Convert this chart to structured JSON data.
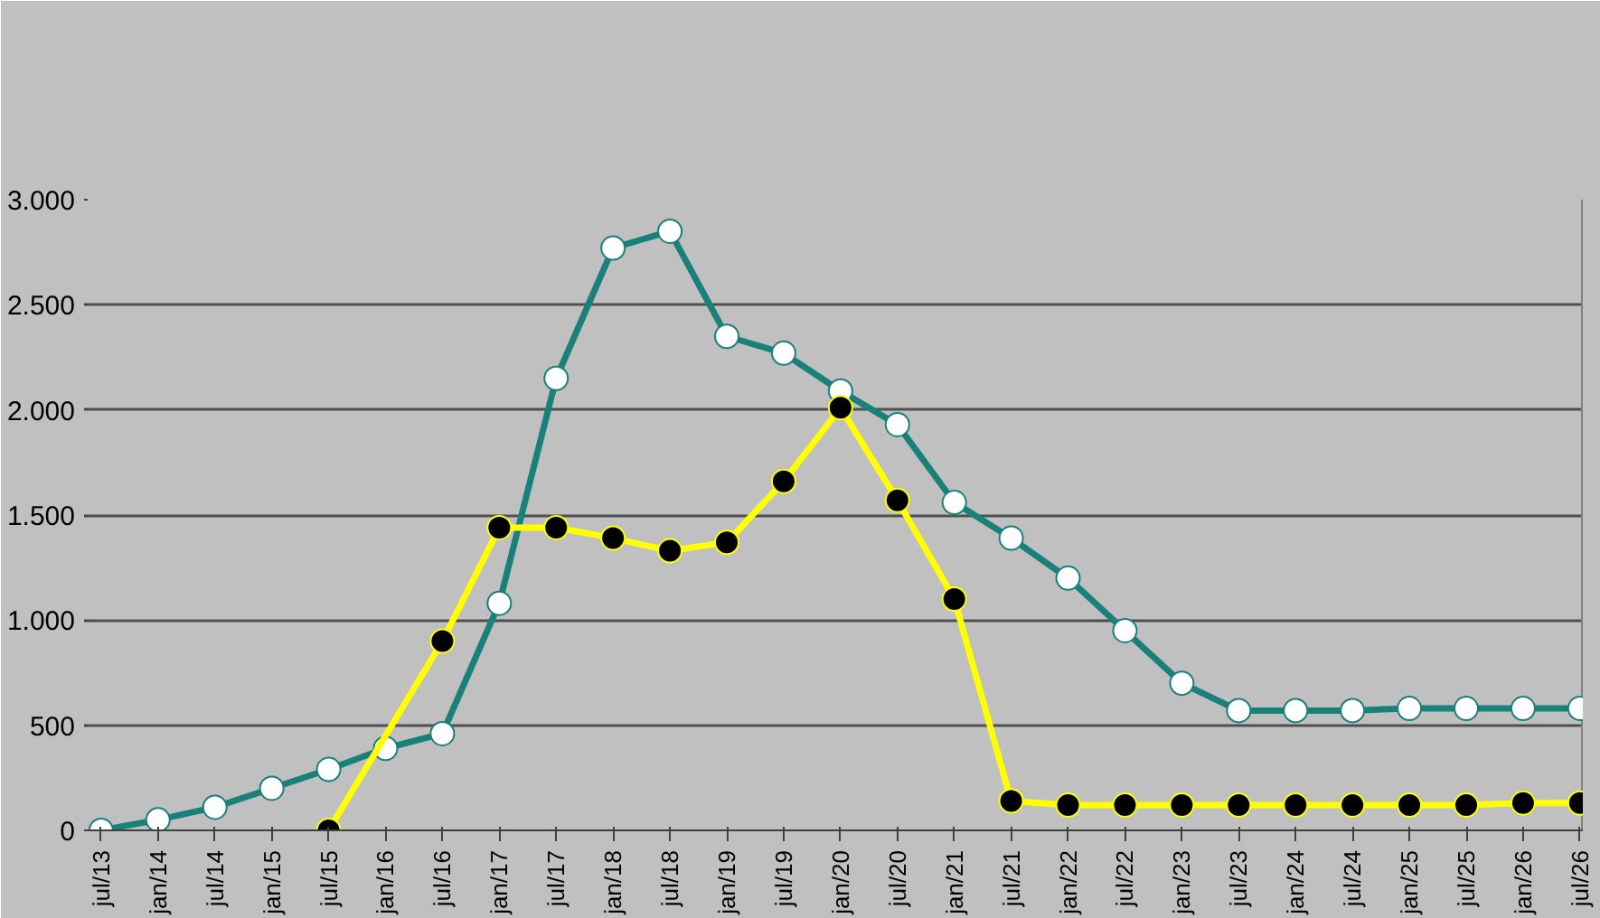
{
  "chart_data": {
    "type": "line",
    "categories": [
      "jul/13",
      "jan/14",
      "jul/14",
      "jan/15",
      "jul/15",
      "jan/16",
      "jul/16",
      "jan/17",
      "jul/17",
      "jan/18",
      "jul/18",
      "jan/19",
      "jul/19",
      "jan/20",
      "jul/20",
      "jan/21",
      "jul/21",
      "jan/22",
      "jul/22",
      "jan/23",
      "jul/23",
      "jan/24",
      "jul/24",
      "jan/25",
      "jul/25",
      "jan/26",
      "jul/26"
    ],
    "series": [
      {
        "color": "#1a807a",
        "values": [
          0,
          50,
          110,
          200,
          290,
          390,
          460,
          1080,
          2150,
          2770,
          2850,
          2350,
          2270,
          2090,
          1930,
          1560,
          1390,
          1200,
          950,
          700,
          570,
          570,
          570,
          580,
          580,
          580,
          580
        ]
      },
      {
        "color": "#ffff00",
        "values": [
          null,
          null,
          null,
          null,
          0,
          null,
          900,
          1440,
          1440,
          1390,
          1330,
          1370,
          1660,
          2010,
          1570,
          1100,
          140,
          120,
          120,
          120,
          120,
          120,
          120,
          120,
          120,
          130,
          130
        ]
      }
    ],
    "ylim": [
      0,
      3000
    ],
    "yticks": [
      {
        "value": 0,
        "label": "0"
      },
      {
        "value": 500,
        "label": "500"
      },
      {
        "value": 1000,
        "label": "1.000"
      },
      {
        "value": 1500,
        "label": "1.500"
      },
      {
        "value": 2000,
        "label": "2.000"
      },
      {
        "value": 2500,
        "label": "2.500"
      },
      {
        "value": 3000,
        "label": "3.000"
      }
    ],
    "grid": "y",
    "marker": "circle"
  }
}
